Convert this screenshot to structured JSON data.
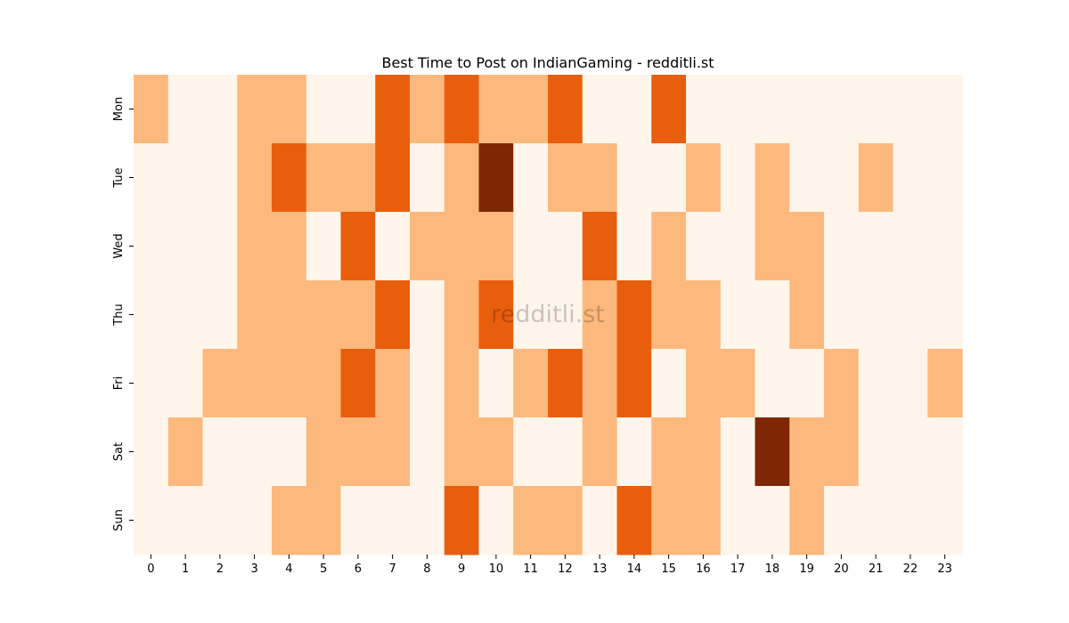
{
  "chart_data": {
    "type": "heatmap",
    "title": "Best Time to Post on IndianGaming - redditli.st",
    "watermark": "redditli.st",
    "xlabel": "",
    "ylabel": "",
    "x_categories": [
      "0",
      "1",
      "2",
      "3",
      "4",
      "5",
      "6",
      "7",
      "8",
      "9",
      "10",
      "11",
      "12",
      "13",
      "14",
      "15",
      "16",
      "17",
      "18",
      "19",
      "20",
      "21",
      "22",
      "23"
    ],
    "y_categories": [
      "Mon",
      "Tue",
      "Wed",
      "Thu",
      "Fri",
      "Sat",
      "Sun"
    ],
    "values": [
      [
        1,
        0,
        0,
        1,
        1,
        0,
        0,
        2,
        1,
        2,
        1,
        1,
        2,
        0,
        0,
        2,
        0,
        0,
        0,
        0,
        0,
        0,
        0,
        0
      ],
      [
        0,
        0,
        0,
        1,
        2,
        1,
        1,
        2,
        0,
        1,
        3,
        0,
        1,
        1,
        0,
        0,
        1,
        0,
        1,
        0,
        0,
        1,
        0,
        0
      ],
      [
        0,
        0,
        0,
        1,
        1,
        0,
        2,
        0,
        1,
        1,
        1,
        0,
        0,
        2,
        0,
        1,
        0,
        0,
        1,
        1,
        0,
        0,
        0,
        0
      ],
      [
        0,
        0,
        0,
        1,
        1,
        1,
        1,
        2,
        0,
        1,
        2,
        0,
        0,
        1,
        2,
        1,
        1,
        0,
        0,
        1,
        0,
        0,
        0,
        0
      ],
      [
        0,
        0,
        1,
        1,
        1,
        1,
        2,
        1,
        0,
        1,
        0,
        1,
        2,
        1,
        2,
        0,
        1,
        1,
        0,
        0,
        1,
        0,
        0,
        1
      ],
      [
        0,
        1,
        0,
        0,
        0,
        1,
        1,
        1,
        0,
        1,
        1,
        0,
        0,
        1,
        0,
        1,
        1,
        0,
        3,
        1,
        1,
        0,
        0,
        0
      ],
      [
        0,
        0,
        0,
        0,
        1,
        1,
        0,
        0,
        0,
        2,
        0,
        1,
        1,
        0,
        2,
        1,
        1,
        0,
        0,
        1,
        0,
        0,
        0,
        0
      ]
    ],
    "colormap": [
      "#fff5eb",
      "#fdb97d",
      "#e95e0d",
      "#7f2704"
    ],
    "vmin": 0,
    "vmax": 3,
    "colorbar": false,
    "grid": false
  }
}
